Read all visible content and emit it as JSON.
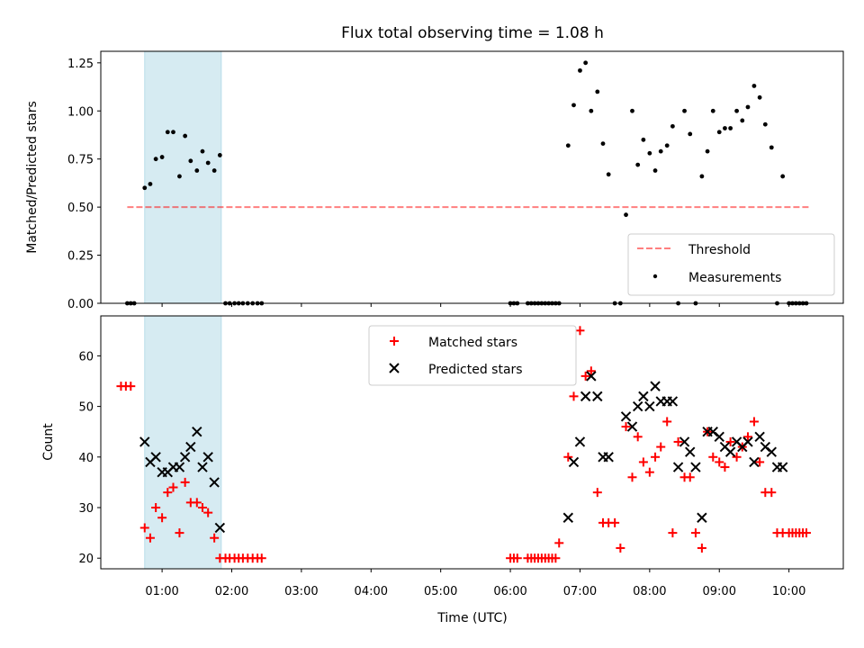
{
  "chart_data": {
    "title": "Flux total observing time = 1.08 h",
    "xlabel": "Time (UTC)",
    "x_ticks": [
      "01:00",
      "02:00",
      "03:00",
      "04:00",
      "05:00",
      "06:00",
      "07:00",
      "08:00",
      "09:00",
      "10:00"
    ],
    "xlim_hours": [
      0.12,
      10.78
    ],
    "highlight_span_hours": [
      0.75,
      1.85
    ],
    "colors": {
      "span": "#add8e6",
      "threshold": "#ff0000",
      "matched": "#ff0000",
      "predicted": "#000000"
    },
    "panels": [
      {
        "type": "scatter",
        "ylabel": "Matched/Predicted stars",
        "ylim": [
          0,
          1.31
        ],
        "y_ticks": [
          0,
          0.25,
          0.5,
          0.75,
          1.0,
          1.25
        ],
        "y_tick_labels": [
          "0.00",
          "0.25",
          "0.50",
          "0.75",
          "1.00",
          "1.25"
        ],
        "legend": {
          "location": "lower right",
          "threshold_label": "Threshold",
          "measurements_label": "Measurements"
        },
        "threshold": {
          "y": 0.5,
          "x_range_hours": [
            0.5,
            10.3
          ]
        },
        "series": [
          {
            "name": "Measurements",
            "marker": "dot",
            "x_hours": [
              0.5,
              0.55,
              0.6,
              0.75,
              0.83,
              0.91,
              1.0,
              1.08,
              1.16,
              1.25,
              1.33,
              1.41,
              1.5,
              1.58,
              1.66,
              1.75,
              1.83,
              1.91,
              1.97,
              2.04,
              2.1,
              2.16,
              2.23,
              2.3,
              2.37,
              2.43,
              6.0,
              6.05,
              6.1,
              6.25,
              6.3,
              6.35,
              6.4,
              6.45,
              6.5,
              6.55,
              6.6,
              6.65,
              6.7,
              6.83,
              6.91,
              7.0,
              7.08,
              7.16,
              7.25,
              7.33,
              7.41,
              7.5,
              7.58,
              7.66,
              7.75,
              7.83,
              7.91,
              8.0,
              8.08,
              8.16,
              8.25,
              8.33,
              8.41,
              8.5,
              8.58,
              8.66,
              8.75,
              8.83,
              8.91,
              9.0,
              9.08,
              9.16,
              9.25,
              9.33,
              9.41,
              9.5,
              9.58,
              9.66,
              9.75,
              9.83,
              9.91,
              10.0,
              10.05,
              10.1,
              10.15,
              10.2,
              10.25
            ],
            "y": [
              0,
              0,
              0,
              0.6,
              0.62,
              0.75,
              0.76,
              0.89,
              0.89,
              0.66,
              0.87,
              0.74,
              0.69,
              0.79,
              0.73,
              0.69,
              0.77,
              0,
              0,
              0,
              0,
              0,
              0,
              0,
              0,
              0,
              0,
              0,
              0,
              0,
              0,
              0,
              0,
              0,
              0,
              0,
              0,
              0,
              0,
              0.82,
              1.03,
              1.21,
              1.25,
              1.0,
              1.1,
              0.83,
              0.67,
              0.0,
              0.0,
              0.46,
              1.0,
              0.72,
              0.85,
              0.78,
              0.69,
              0.79,
              0.82,
              0.92,
              0.0,
              1.0,
              0.88,
              0.0,
              0.66,
              0.79,
              1.0,
              0.89,
              0.91,
              0.91,
              1.0,
              0.95,
              1.02,
              1.13,
              1.07,
              0.93,
              0.81,
              0.0,
              0.66,
              0.0,
              0,
              0,
              0,
              0,
              0
            ]
          }
        ]
      },
      {
        "type": "scatter",
        "ylabel": "Count",
        "ylim": [
          17.9,
          67.9
        ],
        "y_ticks": [
          20,
          30,
          40,
          50,
          60
        ],
        "y_tick_labels": [
          "20",
          "30",
          "40",
          "50",
          "60"
        ],
        "legend": {
          "location": "upper center"
        },
        "series": [
          {
            "name": "Matched stars",
            "marker": "plus",
            "x_hours": [
              0.41,
              0.48,
              0.55,
              0.75,
              0.83,
              0.91,
              1.0,
              1.08,
              1.16,
              1.25,
              1.33,
              1.41,
              1.5,
              1.58,
              1.66,
              1.75,
              1.83,
              1.91,
              1.97,
              2.04,
              2.1,
              2.16,
              2.23,
              2.3,
              2.37,
              2.43,
              6.0,
              6.05,
              6.1,
              6.25,
              6.3,
              6.35,
              6.4,
              6.45,
              6.5,
              6.55,
              6.6,
              6.65,
              6.7,
              6.83,
              6.91,
              7.0,
              7.08,
              7.16,
              7.25,
              7.33,
              7.41,
              7.5,
              7.58,
              7.66,
              7.75,
              7.83,
              7.91,
              8.0,
              8.08,
              8.16,
              8.25,
              8.33,
              8.41,
              8.5,
              8.58,
              8.66,
              8.75,
              8.83,
              8.91,
              9.0,
              9.08,
              9.16,
              9.25,
              9.33,
              9.41,
              9.5,
              9.58,
              9.66,
              9.75,
              9.83,
              9.91,
              10.0,
              10.05,
              10.1,
              10.15,
              10.2,
              10.25
            ],
            "y": [
              54,
              54,
              54,
              26,
              24,
              30,
              28,
              33,
              34,
              25,
              35,
              31,
              31,
              30,
              29,
              24,
              20,
              20,
              20,
              20,
              20,
              20,
              20,
              20,
              20,
              20,
              20,
              20,
              20,
              20,
              20,
              20,
              20,
              20,
              20,
              20,
              20,
              20,
              23,
              40,
              52,
              65,
              56,
              57,
              33,
              27,
              27,
              27,
              22,
              46,
              36,
              44,
              39,
              37,
              40,
              42,
              47,
              25,
              43,
              36,
              36,
              25,
              22,
              45,
              40,
              39,
              38,
              43,
              40,
              42,
              44,
              47,
              39,
              33,
              33,
              25,
              25,
              25,
              25,
              25,
              25,
              25,
              25
            ]
          },
          {
            "name": "Predicted stars",
            "marker": "x",
            "x_hours": [
              0.75,
              0.83,
              0.91,
              1.0,
              1.08,
              1.16,
              1.25,
              1.33,
              1.41,
              1.5,
              1.58,
              1.66,
              1.75,
              1.83,
              6.83,
              6.91,
              7.0,
              7.08,
              7.16,
              7.25,
              7.33,
              7.41,
              7.66,
              7.75,
              7.83,
              7.91,
              8.0,
              8.08,
              8.16,
              8.25,
              8.33,
              8.41,
              8.5,
              8.58,
              8.66,
              8.75,
              8.83,
              8.91,
              9.0,
              9.08,
              9.16,
              9.25,
              9.33,
              9.41,
              9.5,
              9.58,
              9.66,
              9.75,
              9.83,
              9.91
            ],
            "y": [
              43,
              39,
              40,
              37,
              37,
              38,
              38,
              40,
              42,
              45,
              38,
              40,
              35,
              26,
              28,
              39,
              43,
              52,
              56,
              52,
              40,
              40,
              48,
              46,
              50,
              52,
              50,
              54,
              51,
              51,
              51,
              38,
              43,
              41,
              38,
              28,
              45,
              45,
              44,
              42,
              41,
              43,
              42,
              43,
              39,
              44,
              42,
              41,
              38,
              38
            ]
          }
        ]
      }
    ]
  }
}
